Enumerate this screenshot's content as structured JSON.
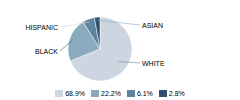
{
  "chart_data": {
    "type": "pie",
    "categories": [
      "WHITE",
      "BLACK",
      "HISPANIC",
      "ASIAN"
    ],
    "values": [
      68.9,
      22.2,
      6.1,
      2.8
    ],
    "colors": [
      "#cdd5e0",
      "#8aabbe",
      "#5f84a0",
      "#2e506e"
    ],
    "value_labels": [
      "68.9%",
      "22.2%",
      "6.1%",
      "2.8%"
    ],
    "legend": "bottom"
  }
}
